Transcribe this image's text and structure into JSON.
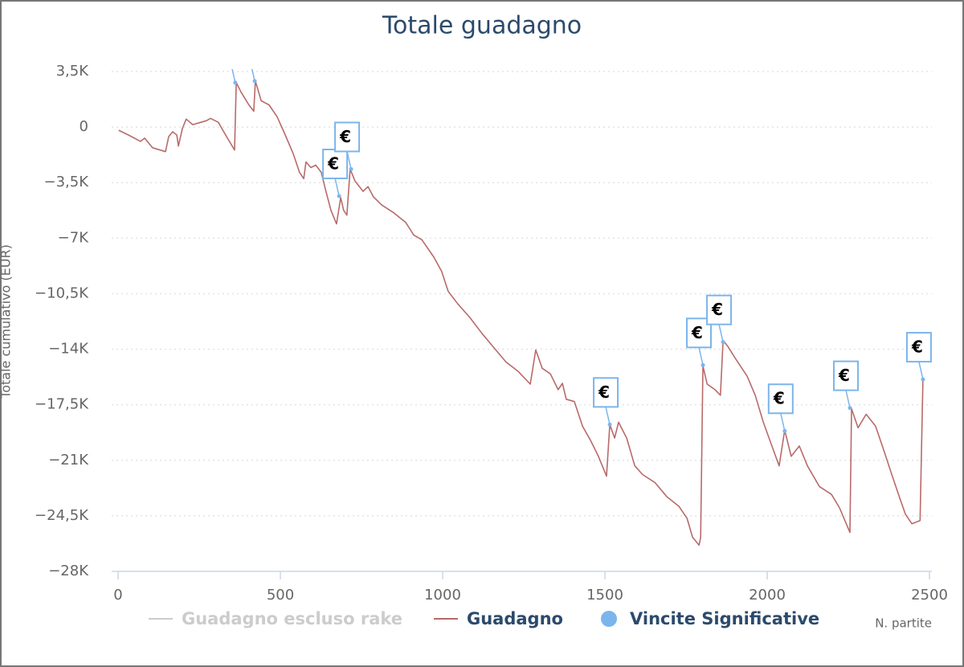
{
  "chart_data": {
    "type": "line",
    "title": "Totale guadagno",
    "y_axis_label": "Totale cumulativo (EUR)",
    "x_axis_label": "N. partite",
    "xlim": [
      0,
      2500
    ],
    "xticks": [
      0,
      500,
      1000,
      1500,
      2000,
      2500
    ],
    "ylim": [
      -28000,
      3500
    ],
    "yticks": [
      {
        "value": 3500,
        "label": "3,5K"
      },
      0,
      {
        "value": -3500,
        "label": "−3,5K"
      },
      {
        "value": -7000,
        "label": "−7K"
      },
      {
        "value": -10500,
        "label": "−10,5K"
      },
      {
        "value": -14000,
        "label": "−14K"
      },
      {
        "value": -17500,
        "label": "−17,5K"
      },
      {
        "value": -21000,
        "label": "−21K"
      },
      {
        "value": -24500,
        "label": "−24,5K"
      },
      {
        "value": -28000,
        "label": "−28K"
      }
    ],
    "grid": true,
    "series": [
      {
        "name": "Guadagno escluso rake",
        "color": "#cccccc",
        "visible": false
      },
      {
        "name": "Guadagno",
        "color": "#b96a6a",
        "x": [
          2,
          32,
          69,
          82,
          106,
          146,
          156,
          168,
          181,
          186,
          198,
          210,
          230,
          255,
          272,
          285,
          309,
          337,
          359,
          364,
          379,
          403,
          418,
          423,
          441,
          465,
          490,
          515,
          540,
          559,
          572,
          579,
          594,
          609,
          626,
          639,
          656,
          673,
          686,
          695,
          705,
          715,
          730,
          755,
          770,
          787,
          812,
          849,
          886,
          911,
          936,
          973,
          997,
          1017,
          1047,
          1084,
          1121,
          1158,
          1195,
          1233,
          1270,
          1287,
          1307,
          1332,
          1356,
          1369,
          1381,
          1406,
          1431,
          1456,
          1480,
          1505,
          1515,
          1530,
          1542,
          1567,
          1592,
          1616,
          1654,
          1691,
          1728,
          1753,
          1770,
          1790,
          1795,
          1802,
          1815,
          1839,
          1856,
          1864,
          1878,
          1901,
          1938,
          1963,
          1988,
          2012,
          2037,
          2054,
          2074,
          2099,
          2124,
          2161,
          2198,
          2223,
          2255,
          2260,
          2280,
          2305,
          2334,
          2359,
          2384,
          2409,
          2426,
          2446,
          2471,
          2480
        ],
        "values": [
          -200,
          -500,
          -900,
          -700,
          -1300,
          -1550,
          -600,
          -300,
          -500,
          -1200,
          -100,
          500,
          150,
          300,
          400,
          550,
          300,
          -700,
          -1450,
          2800,
          2200,
          1400,
          1000,
          2900,
          1650,
          1400,
          650,
          -500,
          -1700,
          -2850,
          -3250,
          -2200,
          -2550,
          -2400,
          -2850,
          -3950,
          -5250,
          -6100,
          -4450,
          -5250,
          -5550,
          -2650,
          -3400,
          -4050,
          -3750,
          -4400,
          -4900,
          -5400,
          -6000,
          -6800,
          -7100,
          -8200,
          -9100,
          -10350,
          -11150,
          -12000,
          -13000,
          -13900,
          -14800,
          -15400,
          -16200,
          -14050,
          -15200,
          -15550,
          -16550,
          -16150,
          -17150,
          -17300,
          -18850,
          -19750,
          -20750,
          -22000,
          -18750,
          -19600,
          -18600,
          -19600,
          -21350,
          -21900,
          -22400,
          -23300,
          -23900,
          -24650,
          -25850,
          -26350,
          -25850,
          -15050,
          -16200,
          -16550,
          -16900,
          -13450,
          -13800,
          -14550,
          -15700,
          -16900,
          -18600,
          -19950,
          -21350,
          -19100,
          -20750,
          -20100,
          -21350,
          -22650,
          -23150,
          -24000,
          -25550,
          -17750,
          -18950,
          -18100,
          -18850,
          -20350,
          -21900,
          -23400,
          -24400,
          -25000,
          -24800,
          -15900
        ]
      },
      {
        "name": "Vincite Significative",
        "color": "#7cb5ec",
        "marker": "flag",
        "flag_label": "€",
        "x": [
          361,
          421,
          681,
          718,
          1515,
          1802,
          1864,
          2054,
          2255,
          2480
        ],
        "values": [
          2800,
          2900,
          -4350,
          -2650,
          -18750,
          -15000,
          -13550,
          -19150,
          -17700,
          -15900
        ]
      }
    ]
  }
}
